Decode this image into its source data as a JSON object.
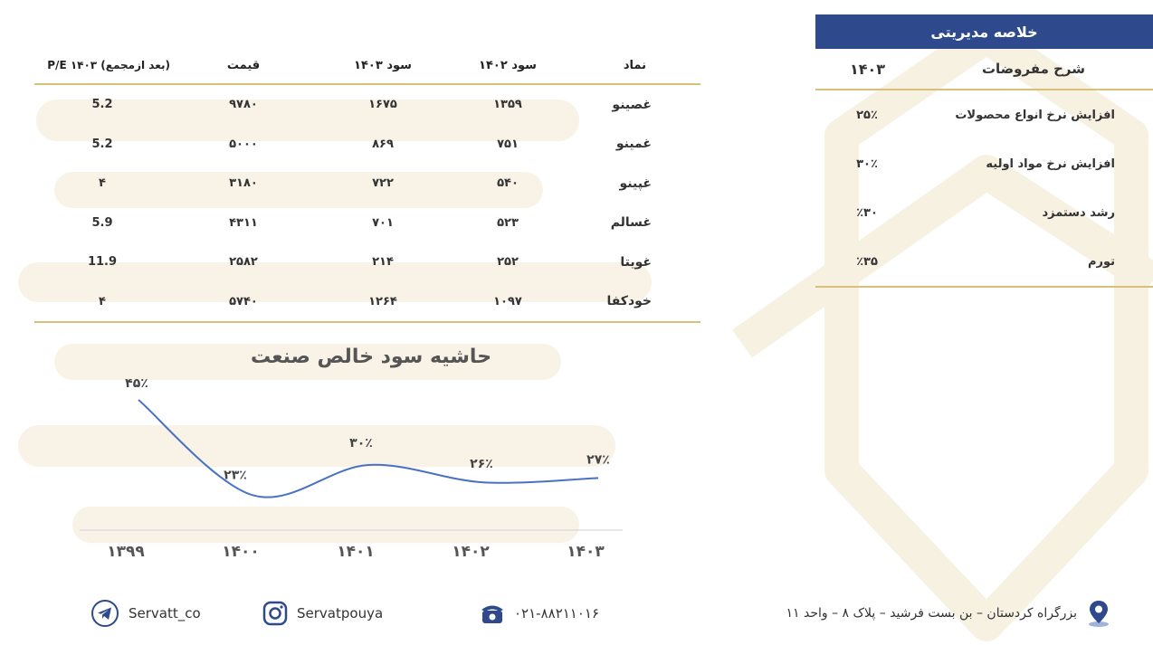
{
  "main_table": {
    "headers": {
      "symbol": "نماد",
      "profit_1402": "سود ۱۴۰۲",
      "profit_1403": "سود ۱۴۰۳",
      "price": "قیمت",
      "pe": "P/E ۱۴۰۳ (بعد ازمجمع)"
    },
    "rows": [
      {
        "symbol": "غصینو",
        "profit_1402": "۱۳۵۹",
        "profit_1403": "۱۶۷۵",
        "price": "۹۷۸۰",
        "pe": "5.2"
      },
      {
        "symbol": "غمینو",
        "profit_1402": "۷۵۱",
        "profit_1403": "۸۶۹",
        "price": "۵۰۰۰",
        "pe": "5.2"
      },
      {
        "symbol": "غپینو",
        "profit_1402": "۵۴۰",
        "profit_1403": "۷۲۲",
        "price": "۳۱۸۰",
        "pe": "۴"
      },
      {
        "symbol": "غسالم",
        "profit_1402": "۵۲۳",
        "profit_1403": "۷۰۱",
        "price": "۴۳۱۱",
        "pe": "5.9"
      },
      {
        "symbol": "غویتا",
        "profit_1402": "۲۵۲",
        "profit_1403": "۲۱۴",
        "price": "۲۵۸۲",
        "pe": "11.9"
      },
      {
        "symbol": "خودکفا",
        "profit_1402": "۱۰۹۷",
        "profit_1403": "۱۲۶۴",
        "price": "۵۷۴۰",
        "pe": "۴"
      }
    ]
  },
  "chart_data": {
    "type": "line",
    "title": "حاشیه سود خالص صنعت",
    "categories": [
      "۱۳۹۹",
      "۱۴۰۰",
      "۱۴۰۱",
      "۱۴۰۲",
      "۱۴۰۳"
    ],
    "values": [
      45,
      23,
      30,
      26,
      27
    ],
    "data_labels": [
      "۴۵٪",
      "۲۳٪",
      "۳۰٪",
      "۲۶٪",
      "۲۷٪"
    ],
    "line_color": "#4a72c4",
    "grid": false
  },
  "summary": {
    "title": "خلاصه مدیریتی",
    "column_label": "شرح مفروضات",
    "year": "۱۴۰۳",
    "rows": [
      {
        "label": "افزایش نرخ انواع محصولات",
        "value": "۲۵٪"
      },
      {
        "label": "افزایش نرخ مواد اولیه",
        "value": "۳۰٪"
      },
      {
        "label": "رشد دستمزد",
        "value": "٪۳۰"
      },
      {
        "label": "تورم",
        "value": "٪۳۵"
      }
    ],
    "header_color": "#2e4a8c",
    "rule_color": "#d9c07a"
  },
  "footer": {
    "telegram": "Servatt_co",
    "instagram": "Servatpouya",
    "phone": "۰۲۱-۸۸۲۱۱۰۱۶",
    "address": "بزرگراه کردستان – بن بست فرشید – پلاک ۸ – واحد ۱۱",
    "icons": {
      "telegram": "telegram-icon",
      "instagram": "instagram-icon",
      "phone": "phone-icon",
      "location": "location-pin-icon"
    }
  }
}
